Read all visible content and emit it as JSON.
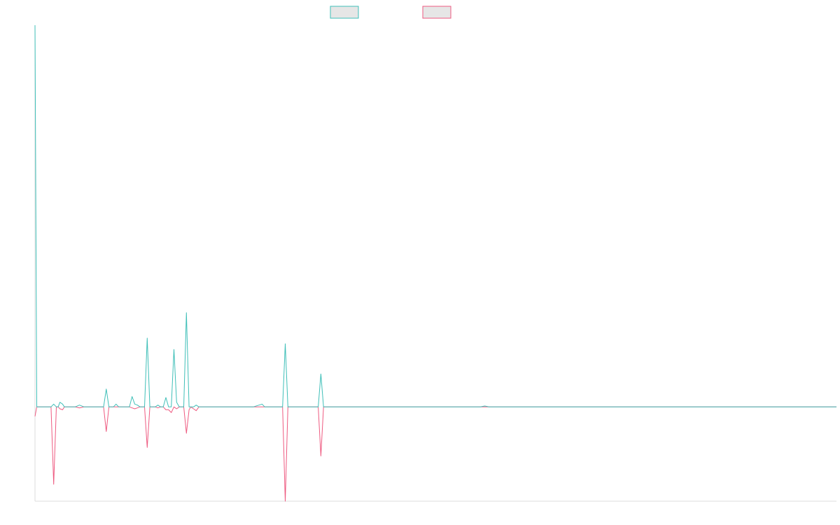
{
  "chart_data": {
    "type": "line",
    "title": "",
    "xlabel": "",
    "ylabel": "",
    "ylim": [
      -100,
      405
    ],
    "grid": false,
    "legend_position": "top-center",
    "colors": {
      "series_a": "#3fbfb8",
      "series_b": "#ee5a80",
      "legend_fill": "#e6e6e6",
      "axis": "#dddddd"
    },
    "series": [
      {
        "name": "",
        "color": "#3fbfb8",
        "points": [
          [
            0,
            405
          ],
          [
            2,
            0
          ],
          [
            12,
            0
          ],
          [
            18,
            0
          ],
          [
            21,
            3
          ],
          [
            24,
            0
          ],
          [
            26,
            0
          ],
          [
            28,
            5
          ],
          [
            31,
            3
          ],
          [
            33,
            0
          ],
          [
            45,
            0
          ],
          [
            50,
            2
          ],
          [
            55,
            0
          ],
          [
            70,
            0
          ],
          [
            77,
            0
          ],
          [
            80,
            19
          ],
          [
            83,
            0
          ],
          [
            85,
            0
          ],
          [
            88,
            0
          ],
          [
            91,
            3
          ],
          [
            94,
            0
          ],
          [
            100,
            0
          ],
          [
            106,
            0
          ],
          [
            109,
            11
          ],
          [
            112,
            3
          ],
          [
            115,
            2
          ],
          [
            118,
            0
          ],
          [
            120,
            0
          ],
          [
            123,
            0
          ],
          [
            126,
            73
          ],
          [
            129,
            0
          ],
          [
            135,
            0
          ],
          [
            138,
            2
          ],
          [
            141,
            0
          ],
          [
            144,
            0
          ],
          [
            147,
            10
          ],
          [
            150,
            0
          ],
          [
            153,
            0
          ],
          [
            156,
            61
          ],
          [
            159,
            5
          ],
          [
            162,
            0
          ],
          [
            164,
            0
          ],
          [
            167,
            0
          ],
          [
            170,
            100
          ],
          [
            173,
            0
          ],
          [
            175,
            0
          ],
          [
            178,
            0
          ],
          [
            181,
            2
          ],
          [
            184,
            0
          ],
          [
            187,
            0
          ],
          [
            190,
            0
          ],
          [
            215,
            0
          ],
          [
            225,
            0
          ],
          [
            245,
            0
          ],
          [
            255,
            3
          ],
          [
            258,
            0
          ],
          [
            270,
            0
          ],
          [
            278,
            0
          ],
          [
            281,
            67
          ],
          [
            284,
            0
          ],
          [
            300,
            0
          ],
          [
            310,
            0
          ],
          [
            318,
            0
          ],
          [
            321,
            35
          ],
          [
            324,
            0
          ],
          [
            400,
            0
          ],
          [
            500,
            0
          ],
          [
            505,
            1
          ],
          [
            510,
            0
          ],
          [
            600,
            0
          ],
          [
            700,
            0
          ],
          [
            800,
            0
          ],
          [
            880,
            0
          ],
          [
            900,
            0
          ]
        ]
      },
      {
        "name": "",
        "color": "#ee5a80",
        "points": [
          [
            0,
            -10
          ],
          [
            2,
            0
          ],
          [
            12,
            0
          ],
          [
            18,
            0
          ],
          [
            21,
            -82
          ],
          [
            24,
            0
          ],
          [
            26,
            0
          ],
          [
            28,
            -2
          ],
          [
            31,
            -3
          ],
          [
            33,
            0
          ],
          [
            45,
            0
          ],
          [
            50,
            -1
          ],
          [
            55,
            0
          ],
          [
            70,
            0
          ],
          [
            77,
            0
          ],
          [
            80,
            -26
          ],
          [
            83,
            0
          ],
          [
            85,
            0
          ],
          [
            88,
            0
          ],
          [
            91,
            0
          ],
          [
            94,
            0
          ],
          [
            100,
            0
          ],
          [
            106,
            0
          ],
          [
            109,
            -1
          ],
          [
            112,
            -2
          ],
          [
            115,
            -1
          ],
          [
            118,
            0
          ],
          [
            120,
            0
          ],
          [
            123,
            0
          ],
          [
            126,
            -43
          ],
          [
            129,
            0
          ],
          [
            135,
            0
          ],
          [
            138,
            -1
          ],
          [
            141,
            0
          ],
          [
            144,
            0
          ],
          [
            147,
            -3
          ],
          [
            150,
            -3
          ],
          [
            153,
            -6
          ],
          [
            156,
            0
          ],
          [
            159,
            -2
          ],
          [
            162,
            0
          ],
          [
            164,
            0
          ],
          [
            167,
            0
          ],
          [
            170,
            -28
          ],
          [
            173,
            -3
          ],
          [
            175,
            0
          ],
          [
            178,
            -2
          ],
          [
            181,
            -4
          ],
          [
            184,
            0
          ],
          [
            187,
            0
          ],
          [
            190,
            0
          ],
          [
            215,
            0
          ],
          [
            225,
            0
          ],
          [
            245,
            0
          ],
          [
            255,
            0
          ],
          [
            258,
            0
          ],
          [
            270,
            0
          ],
          [
            278,
            0
          ],
          [
            281,
            -100
          ],
          [
            284,
            0
          ],
          [
            300,
            0
          ],
          [
            310,
            0
          ],
          [
            318,
            0
          ],
          [
            321,
            -52
          ],
          [
            324,
            0
          ],
          [
            400,
            0
          ],
          [
            500,
            0
          ],
          [
            505,
            0
          ],
          [
            510,
            0
          ],
          [
            600,
            0
          ],
          [
            700,
            0
          ],
          [
            800,
            0
          ],
          [
            880,
            0
          ],
          [
            900,
            0
          ]
        ]
      }
    ],
    "xlim": [
      0,
      900
    ]
  }
}
